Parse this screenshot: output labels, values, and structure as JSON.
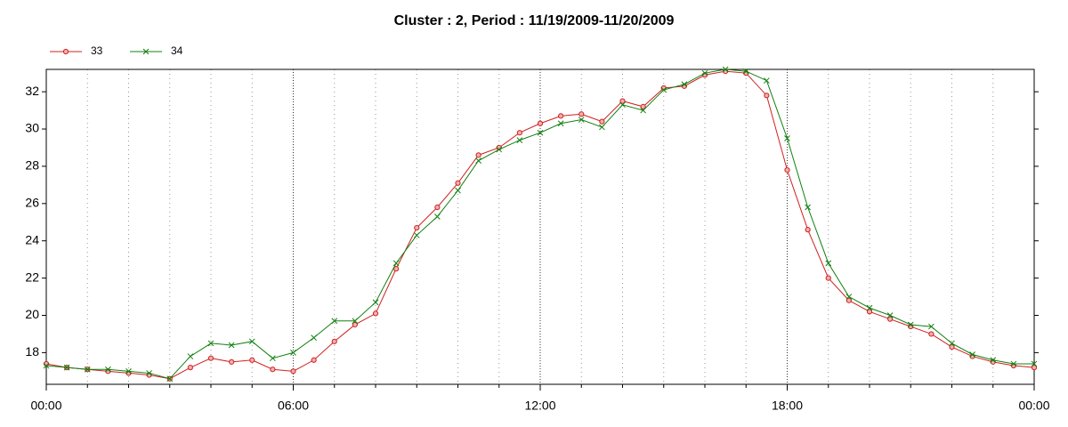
{
  "chart_data": {
    "type": "line",
    "title": "Cluster : 2, Period : 11/19/2009-11/20/2009",
    "x": [
      0,
      0.5,
      1,
      1.5,
      2,
      2.5,
      3,
      3.5,
      4,
      4.5,
      5,
      5.5,
      6,
      6.5,
      7,
      7.5,
      8,
      8.5,
      9,
      9.5,
      10,
      10.5,
      11,
      11.5,
      12,
      12.5,
      13,
      13.5,
      14,
      14.5,
      15,
      15.5,
      16,
      16.5,
      17,
      17.5,
      18,
      18.5,
      19,
      19.5,
      20,
      20.5,
      21,
      21.5,
      22,
      22.5,
      23,
      23.5,
      24
    ],
    "series": [
      {
        "name": "33",
        "color": "#d02020",
        "marker": "circle",
        "values": [
          17.4,
          17.2,
          17.1,
          17.0,
          16.9,
          16.8,
          16.6,
          17.2,
          17.7,
          17.5,
          17.6,
          17.1,
          17.0,
          17.6,
          18.6,
          19.5,
          20.1,
          22.5,
          24.7,
          25.8,
          27.1,
          28.6,
          29.0,
          29.8,
          30.3,
          30.7,
          30.8,
          30.4,
          31.5,
          31.2,
          32.2,
          32.3,
          32.9,
          33.1,
          33.0,
          31.8,
          27.8,
          24.6,
          22.0,
          20.8,
          20.2,
          19.8,
          19.4,
          19.0,
          18.3,
          17.8,
          17.5,
          17.3,
          17.2
        ]
      },
      {
        "name": "34",
        "color": "#108010",
        "marker": "x",
        "values": [
          17.3,
          17.2,
          17.1,
          17.1,
          17.0,
          16.9,
          16.6,
          17.8,
          18.5,
          18.4,
          18.6,
          17.7,
          18.0,
          18.8,
          19.7,
          19.7,
          20.7,
          22.8,
          24.3,
          25.3,
          26.7,
          28.3,
          28.9,
          29.4,
          29.8,
          30.3,
          30.5,
          30.1,
          31.3,
          31.0,
          32.1,
          32.4,
          33.0,
          33.2,
          33.1,
          32.6,
          29.5,
          25.8,
          22.8,
          21.0,
          20.4,
          20.0,
          19.5,
          19.4,
          18.5,
          17.9,
          17.6,
          17.4,
          17.4
        ]
      }
    ],
    "xlim": [
      0,
      24
    ],
    "xticks": [
      {
        "value": 0,
        "label": "00:00"
      },
      {
        "value": 6,
        "label": "06:00"
      },
      {
        "value": 12,
        "label": "12:00"
      },
      {
        "value": 18,
        "label": "18:00"
      },
      {
        "value": 24,
        "label": "00:00"
      }
    ],
    "xminorticks": [
      1,
      2,
      3,
      4,
      5,
      7,
      8,
      9,
      10,
      11,
      13,
      14,
      15,
      16,
      17,
      19,
      20,
      21,
      22,
      23
    ],
    "ylim": [
      16.3,
      33.2
    ],
    "yticks": [
      18,
      20,
      22,
      24,
      26,
      28,
      30,
      32
    ],
    "grid": true,
    "legend": "top-left"
  }
}
